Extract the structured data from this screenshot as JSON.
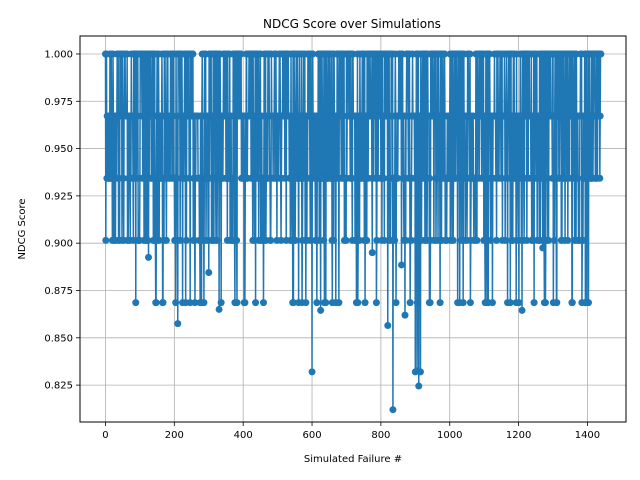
{
  "chart_data": {
    "type": "line",
    "title": "NDCG Score over Simulations",
    "xlabel": "Simulated Failure #",
    "ylabel": "NDCG Score",
    "xlim": [
      -74,
      1512
    ],
    "ylim": [
      0.8055,
      1.0095
    ],
    "xticks": [
      0,
      200,
      400,
      600,
      800,
      1000,
      1200,
      1400
    ],
    "xtick_labels": [
      "0",
      "200",
      "400",
      "600",
      "800",
      "1000",
      "1200",
      "1400"
    ],
    "yticks": [
      0.825,
      0.85,
      0.875,
      0.9,
      0.925,
      0.95,
      0.975,
      1.0
    ],
    "ytick_labels": [
      "0.825",
      "0.850",
      "0.875",
      "0.900",
      "0.925",
      "0.950",
      "0.975",
      "1.000"
    ],
    "grid": true,
    "marker": "circle",
    "color": "#1f77b4",
    "n_points": 1440,
    "series": [
      {
        "values_sample_note": "",
        "levels": [
          1.0,
          0.9672,
          0.9343,
          0.9015,
          0.8686
        ],
        "outliers": [
          {
            "x": 125,
            "y": 0.8925
          },
          {
            "x": 210,
            "y": 0.8575
          },
          {
            "x": 300,
            "y": 0.8845
          },
          {
            "x": 330,
            "y": 0.865
          },
          {
            "x": 600,
            "y": 0.832
          },
          {
            "x": 625,
            "y": 0.8645
          },
          {
            "x": 775,
            "y": 0.895
          },
          {
            "x": 820,
            "y": 0.8565
          },
          {
            "x": 835,
            "y": 0.812
          },
          {
            "x": 860,
            "y": 0.8885
          },
          {
            "x": 870,
            "y": 0.862
          },
          {
            "x": 900,
            "y": 0.832
          },
          {
            "x": 905,
            "y": 0.8325
          },
          {
            "x": 910,
            "y": 0.8245
          },
          {
            "x": 915,
            "y": 0.832
          },
          {
            "x": 1210,
            "y": 0.9185
          },
          {
            "x": 1210,
            "y": 0.8645
          },
          {
            "x": 1270,
            "y": 0.8975
          }
        ]
      }
    ]
  }
}
